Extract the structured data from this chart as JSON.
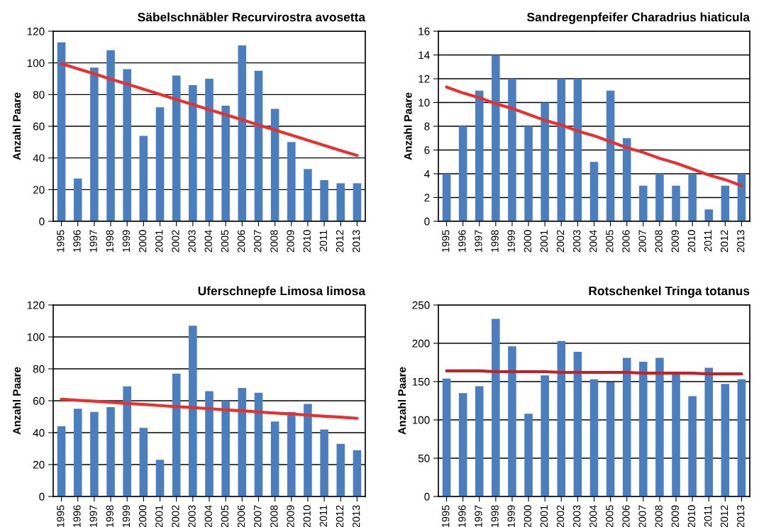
{
  "chart_data": [
    {
      "type": "bar",
      "title": "Säbelschnäbler Recurvirostra avosetta",
      "ylabel": "Anzahl Paare",
      "categories": [
        "1995",
        "1996",
        "1997",
        "1998",
        "1999",
        "2000",
        "2001",
        "2002",
        "2003",
        "2004",
        "2005",
        "2006",
        "2007",
        "2008",
        "2009",
        "2010",
        "2011",
        "2012",
        "2013"
      ],
      "ylim": [
        0,
        120
      ],
      "yticks": [
        0,
        20,
        40,
        60,
        80,
        100,
        120
      ],
      "grid": "y",
      "series": [
        {
          "color": "#4a7ebf",
          "values": [
            113,
            27,
            97,
            108,
            96,
            54,
            72,
            92,
            86,
            90,
            73,
            111,
            95,
            71,
            50,
            33,
            26,
            24,
            24
          ]
        },
        {
          "type": "line",
          "color": "#e8312f",
          "values": [
            99.5,
            96.3,
            93.1,
            89.8,
            86.6,
            83.4,
            80.2,
            76.9,
            73.7,
            70.5,
            67.3,
            64.1,
            60.8,
            57.6,
            54.4,
            51.2,
            47.9,
            44.7,
            41.5
          ]
        }
      ]
    },
    {
      "type": "bar",
      "title": "Sandregenpfeifer Charadrius hiaticula",
      "ylabel": "Anzahl Paare",
      "categories": [
        "1995",
        "1996",
        "1997",
        "1998",
        "1999",
        "2000",
        "2001",
        "2002",
        "2003",
        "2004",
        "2005",
        "2006",
        "2007",
        "2008",
        "2009",
        "2010",
        "2011",
        "2012",
        "2013"
      ],
      "ylim": [
        0,
        16
      ],
      "yticks": [
        0,
        2,
        4,
        6,
        8,
        10,
        12,
        14,
        16
      ],
      "grid": "y",
      "series": [
        {
          "color": "#4a7ebf",
          "values": [
            4,
            8,
            11,
            14,
            12,
            8,
            10,
            12,
            12,
            5,
            11,
            7,
            3,
            4,
            3,
            4,
            1,
            3,
            4
          ]
        },
        {
          "type": "line",
          "color": "#e8312f",
          "values": [
            11.3,
            10.8,
            10.4,
            9.9,
            9.5,
            9.0,
            8.5,
            8.1,
            7.6,
            7.2,
            6.7,
            6.2,
            5.8,
            5.3,
            4.9,
            4.4,
            3.9,
            3.5,
            3.0
          ]
        }
      ]
    },
    {
      "type": "bar",
      "title": "Uferschnepfe Limosa limosa",
      "ylabel": "Anzahl Paare",
      "categories": [
        "1995",
        "1996",
        "1997",
        "1998",
        "1999",
        "2000",
        "2001",
        "2002",
        "2003",
        "2004",
        "2005",
        "2006",
        "2007",
        "2008",
        "2009",
        "2010",
        "2011",
        "2012",
        "2013"
      ],
      "ylim": [
        0,
        120
      ],
      "yticks": [
        0,
        20,
        40,
        60,
        80,
        100,
        120
      ],
      "grid": "y",
      "series": [
        {
          "color": "#4a7ebf",
          "values": [
            44,
            55,
            53,
            56,
            69,
            43,
            23,
            77,
            107,
            66,
            60,
            68,
            65,
            47,
            53,
            58,
            42,
            33,
            29
          ]
        },
        {
          "type": "line",
          "color": "#e8312f",
          "values": [
            61,
            60.3,
            59.7,
            59,
            58.3,
            57.7,
            57,
            56.3,
            55.7,
            55,
            54.3,
            53.7,
            53,
            52.3,
            51.7,
            51,
            50.3,
            49.7,
            49
          ]
        }
      ]
    },
    {
      "type": "bar",
      "title": "Rotschenkel Tringa totanus",
      "ylabel": "Anzahl Paare",
      "categories": [
        "1995",
        "1996",
        "1997",
        "1998",
        "1999",
        "2000",
        "2001",
        "2002",
        "2003",
        "2004",
        "2005",
        "2006",
        "2007",
        "2008",
        "2009",
        "2010",
        "2011",
        "2012",
        "2013"
      ],
      "ylim": [
        0,
        250
      ],
      "yticks": [
        0,
        50,
        100,
        150,
        200,
        250
      ],
      "grid": "y",
      "series": [
        {
          "color": "#4a7ebf",
          "values": [
            154,
            135,
            144,
            232,
            196,
            108,
            158,
            203,
            189,
            153,
            149,
            181,
            176,
            181,
            160,
            131,
            168,
            147,
            153
          ]
        },
        {
          "type": "line",
          "color": "#c0222a",
          "values": [
            164,
            164,
            164,
            163,
            163,
            163,
            163,
            162,
            162,
            162,
            162,
            162,
            161,
            161,
            161,
            161,
            160,
            160,
            160
          ]
        }
      ]
    }
  ]
}
